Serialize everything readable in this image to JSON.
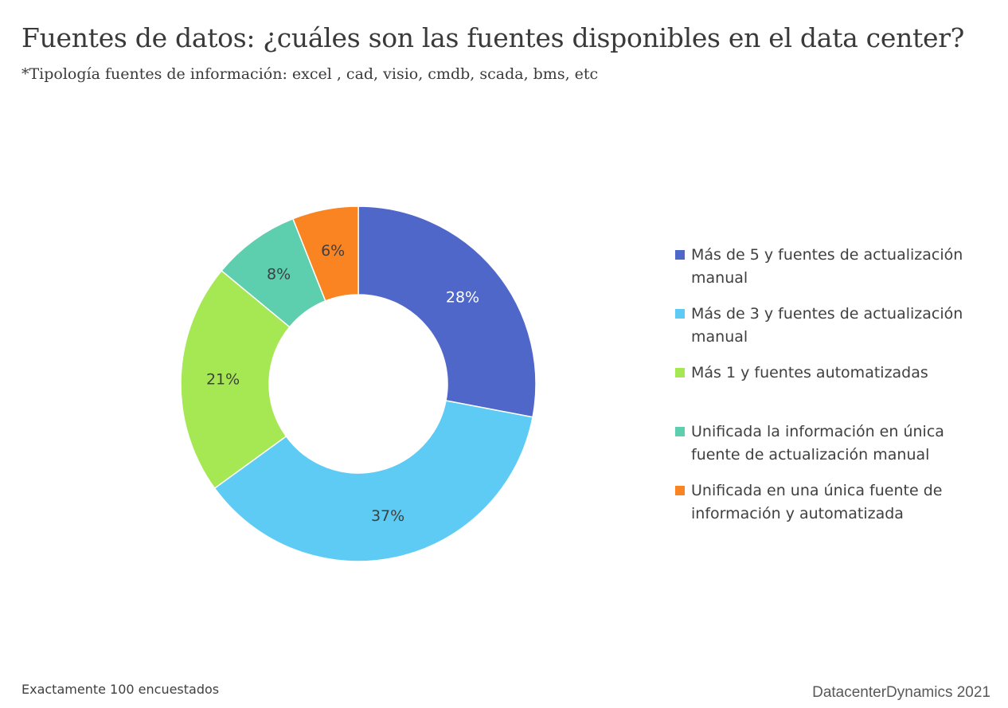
{
  "title": "Fuentes de datos: ¿cuáles son las fuentes disponibles en el data center?",
  "subtitle": "*Tipología fuentes de información: excel , cad, visio, cmdb, scada, bms, etc",
  "footnote": "Exactamente 100 encuestados",
  "credit": "DatacenterDynamics 2021",
  "chart_data": {
    "type": "pie",
    "variant": "donut",
    "legend_position": "right",
    "start_angle_deg": 0,
    "direction": "clockwise",
    "slices": [
      {
        "label": "Más de 5 y fuentes de actualización manual",
        "value": 28,
        "display": "28%",
        "color": "#4f67c9"
      },
      {
        "label": "Más de 3 y fuentes de actualización manual",
        "value": 37,
        "display": "37%",
        "color": "#5dcbf3"
      },
      {
        "label": "Más 1 y fuentes automatizadas",
        "value": 21,
        "display": "21%",
        "color": "#a6e853"
      },
      {
        "label": "Unificada la información en única fuente de actualización manual",
        "value": 8,
        "display": "8%",
        "color": "#5dceae"
      },
      {
        "label": "Unificada en una única fuente de información y automatizada",
        "value": 6,
        "display": "6%",
        "color": "#fa8322"
      }
    ]
  }
}
